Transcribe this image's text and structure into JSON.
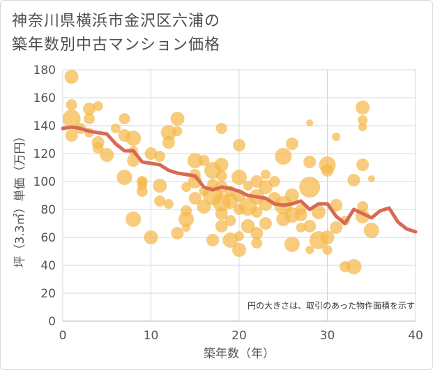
{
  "title_line1": "神奈川県横浜市金沢区六浦の",
  "title_line2": "築年数別中古マンション価格",
  "chart_data": {
    "type": "scatter",
    "xlabel": "築年数（年）",
    "ylabel": "坪（3.3㎡）単価（万円）",
    "xlim": [
      0,
      40
    ],
    "ylim": [
      0,
      180
    ],
    "xticks": [
      "0",
      "10",
      "20",
      "30",
      "40"
    ],
    "yticks": [
      "0",
      "20",
      "40",
      "60",
      "80",
      "100",
      "120",
      "140",
      "160",
      "180"
    ],
    "grid": true,
    "annotation": "円の大きさは、取引のあった物件面積を示す",
    "colors": {
      "bubble": "#f5b94a",
      "line": "#d86a55",
      "grid": "#cfd8e3"
    },
    "scatter_points": [
      [
        1,
        175,
        10
      ],
      [
        1,
        155,
        8
      ],
      [
        1,
        145,
        13
      ],
      [
        1,
        133,
        9
      ],
      [
        2,
        138,
        8
      ],
      [
        3,
        152,
        9
      ],
      [
        3,
        145,
        8
      ],
      [
        4,
        154,
        7
      ],
      [
        3,
        135,
        7
      ],
      [
        4,
        128,
        9
      ],
      [
        4,
        124,
        8
      ],
      [
        5,
        119,
        10
      ],
      [
        6,
        138,
        7
      ],
      [
        7,
        145,
        8
      ],
      [
        7,
        133,
        9
      ],
      [
        8,
        131,
        11
      ],
      [
        8,
        115,
        9
      ],
      [
        8,
        122,
        7
      ],
      [
        7,
        103,
        11
      ],
      [
        9,
        100,
        8
      ],
      [
        9,
        97,
        7
      ],
      [
        9,
        93,
        8
      ],
      [
        8,
        73,
        11
      ],
      [
        10,
        120,
        9
      ],
      [
        10,
        60,
        10
      ],
      [
        11,
        118,
        8
      ],
      [
        11,
        97,
        10
      ],
      [
        11,
        86,
        8
      ],
      [
        12,
        135,
        11
      ],
      [
        12,
        128,
        9
      ],
      [
        12,
        84,
        7
      ],
      [
        13,
        145,
        10
      ],
      [
        13,
        136,
        7
      ],
      [
        13,
        63,
        9
      ],
      [
        14,
        96,
        7
      ],
      [
        14,
        79,
        8
      ],
      [
        14,
        73,
        11
      ],
      [
        14,
        67,
        6
      ],
      [
        15,
        115,
        11
      ],
      [
        15,
        105,
        8
      ],
      [
        15,
        100,
        10
      ],
      [
        15,
        88,
        9
      ],
      [
        16,
        93,
        7
      ],
      [
        16,
        82,
        10
      ],
      [
        17,
        108,
        12
      ],
      [
        17,
        98,
        8
      ],
      [
        17,
        90,
        14
      ],
      [
        17,
        58,
        9
      ],
      [
        18,
        138,
        8
      ],
      [
        18,
        112,
        10
      ],
      [
        18,
        104,
        8
      ],
      [
        18,
        96,
        9
      ],
      [
        18,
        85,
        13
      ],
      [
        18,
        77,
        9
      ],
      [
        18,
        68,
        9
      ],
      [
        19,
        93,
        8
      ],
      [
        19,
        86,
        11
      ],
      [
        19,
        72,
        8
      ],
      [
        19,
        58,
        11
      ],
      [
        20,
        126,
        9
      ],
      [
        20,
        103,
        11
      ],
      [
        20,
        90,
        9
      ],
      [
        20,
        80,
        8
      ],
      [
        20,
        61,
        7
      ],
      [
        20,
        51,
        10
      ],
      [
        21,
        82,
        13
      ],
      [
        21,
        68,
        10
      ],
      [
        21,
        97,
        7
      ],
      [
        22,
        100,
        9
      ],
      [
        22,
        89,
        11
      ],
      [
        22,
        78,
        8
      ],
      [
        22,
        63,
        9
      ],
      [
        22,
        56,
        8
      ],
      [
        23,
        105,
        7
      ],
      [
        23,
        96,
        10
      ],
      [
        23,
        84,
        10
      ],
      [
        23,
        70,
        9
      ],
      [
        24,
        100,
        8
      ],
      [
        24,
        88,
        9
      ],
      [
        25,
        118,
        12
      ],
      [
        25,
        83,
        13
      ],
      [
        25,
        73,
        10
      ],
      [
        26,
        127,
        9
      ],
      [
        26,
        90,
        10
      ],
      [
        26,
        76,
        11
      ],
      [
        26,
        55,
        11
      ],
      [
        27,
        80,
        8
      ],
      [
        27,
        67,
        7
      ],
      [
        28,
        142,
        5
      ],
      [
        28,
        114,
        9
      ],
      [
        28,
        96,
        15
      ],
      [
        28,
        68,
        9
      ],
      [
        28,
        51,
        6
      ],
      [
        29,
        78,
        10
      ],
      [
        29,
        58,
        13
      ],
      [
        30,
        112,
        12
      ],
      [
        30,
        108,
        9
      ],
      [
        30,
        60,
        10
      ],
      [
        30,
        51,
        7
      ],
      [
        31,
        132,
        6
      ],
      [
        31,
        83,
        9
      ],
      [
        31,
        67,
        9
      ],
      [
        32,
        39,
        8
      ],
      [
        32,
        72,
        7
      ],
      [
        33,
        39,
        11
      ],
      [
        33,
        101,
        9
      ],
      [
        34,
        153,
        10
      ],
      [
        34,
        144,
        7
      ],
      [
        34,
        139,
        6
      ],
      [
        34,
        112,
        9
      ],
      [
        34,
        82,
        8
      ],
      [
        34,
        75,
        10
      ],
      [
        35,
        102,
        5
      ],
      [
        35,
        65,
        11
      ],
      [
        9,
        100,
        6
      ],
      [
        16,
        115,
        8
      ],
      [
        27,
        76,
        9
      ]
    ],
    "trend_line": [
      [
        0,
        138
      ],
      [
        1,
        139
      ],
      [
        2,
        138
      ],
      [
        3,
        136
      ],
      [
        4,
        135
      ],
      [
        5,
        134
      ],
      [
        6,
        127
      ],
      [
        7,
        122
      ],
      [
        8,
        122
      ],
      [
        9,
        114
      ],
      [
        10,
        113
      ],
      [
        11,
        112
      ],
      [
        12,
        108
      ],
      [
        13,
        106
      ],
      [
        14,
        105
      ],
      [
        15,
        104
      ],
      [
        16,
        96
      ],
      [
        17,
        94
      ],
      [
        18,
        96
      ],
      [
        19,
        95
      ],
      [
        20,
        93
      ],
      [
        21,
        90
      ],
      [
        22,
        89
      ],
      [
        23,
        88
      ],
      [
        24,
        84
      ],
      [
        25,
        83
      ],
      [
        26,
        84
      ],
      [
        27,
        86
      ],
      [
        28,
        80
      ],
      [
        29,
        84
      ],
      [
        30,
        84
      ],
      [
        31,
        75
      ],
      [
        32,
        70
      ],
      [
        33,
        80
      ],
      [
        34,
        77
      ],
      [
        35,
        74
      ],
      [
        36,
        79
      ],
      [
        37,
        81
      ],
      [
        38,
        71
      ],
      [
        39,
        66
      ],
      [
        40,
        64
      ],
      [
        41,
        62
      ]
    ]
  }
}
